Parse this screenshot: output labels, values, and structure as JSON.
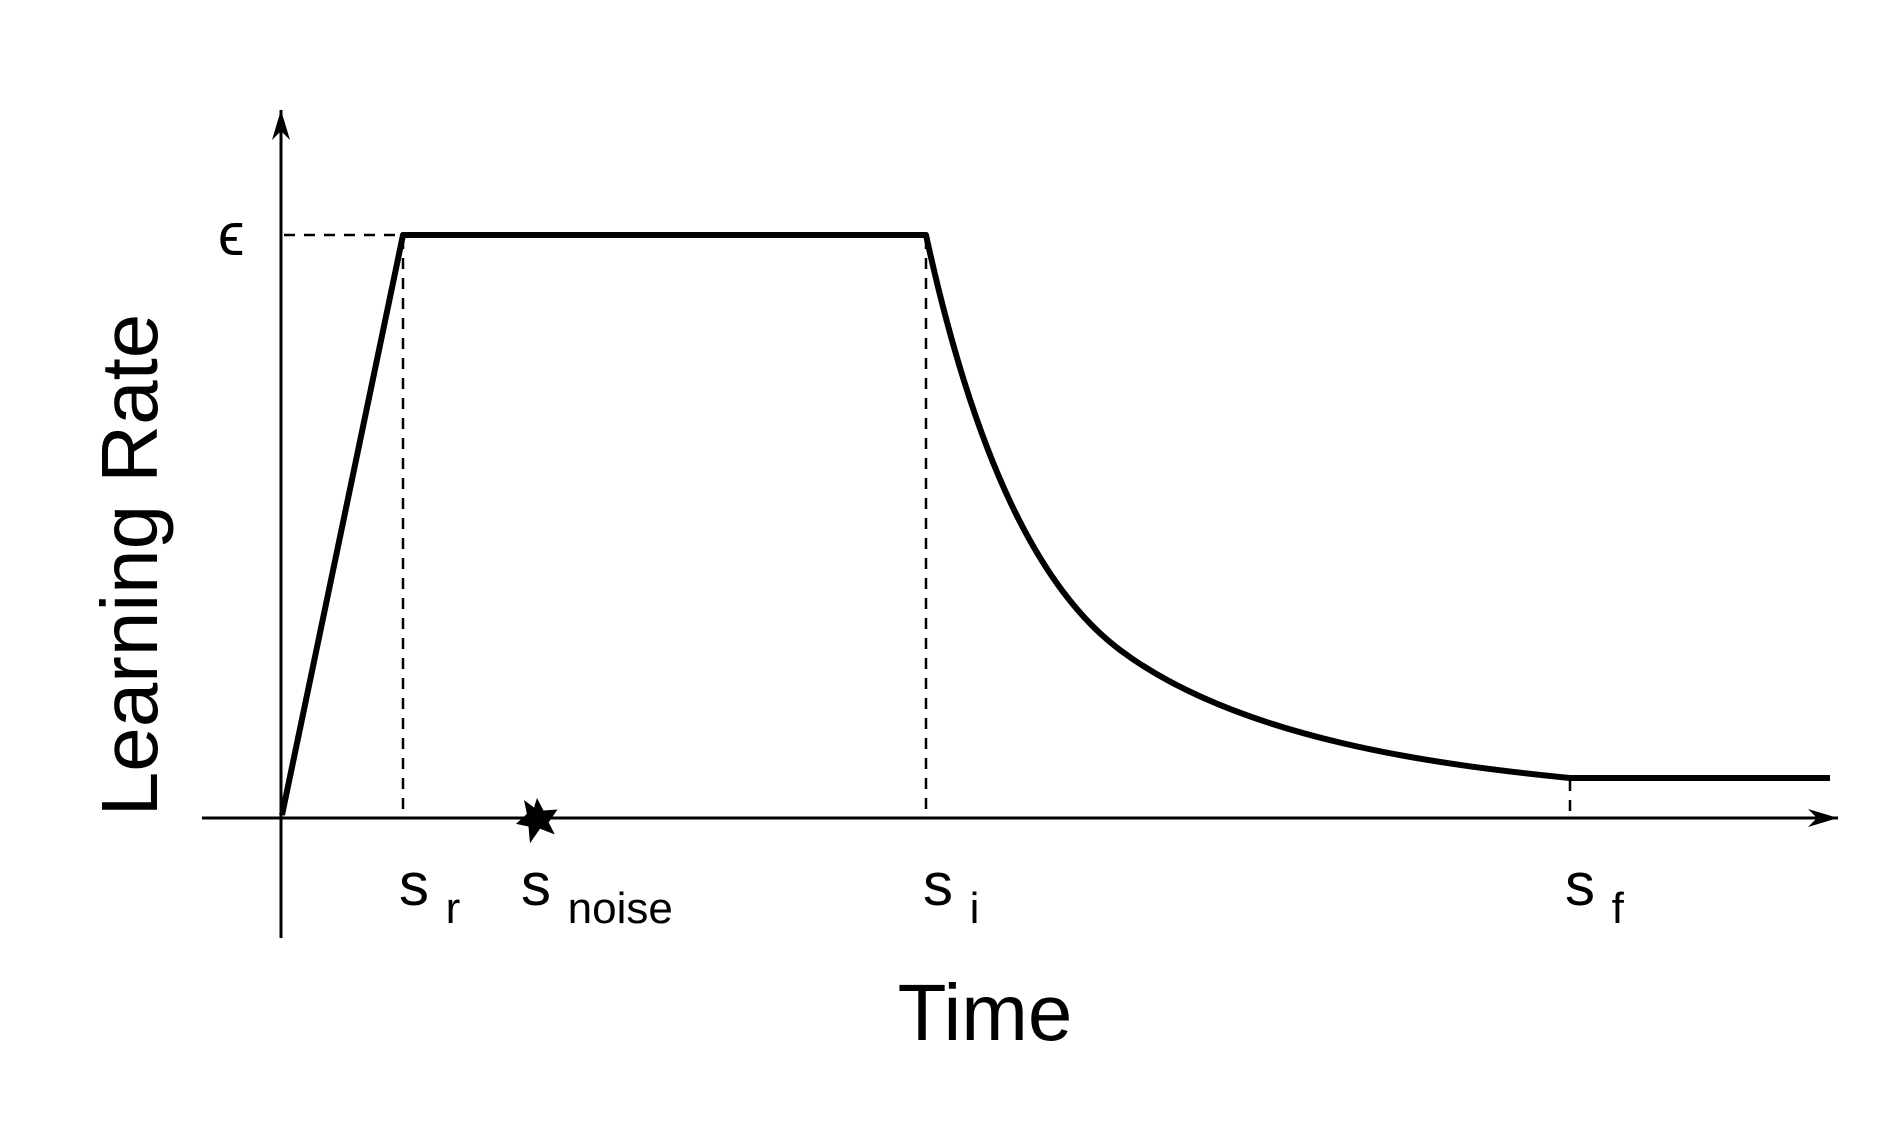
{
  "diagram": {
    "y_axis_label": "Learning Rate",
    "x_axis_label": "Time",
    "peak_label": "ϵ",
    "markers": [
      {
        "base": "s",
        "sub": "r"
      },
      {
        "base": "s",
        "sub": "noise"
      },
      {
        "base": "s",
        "sub": "i"
      },
      {
        "base": "s",
        "sub": "f"
      }
    ],
    "noise_marker_icon": "star-icon",
    "colors": {
      "line": "#000000",
      "background": "#ffffff"
    }
  }
}
